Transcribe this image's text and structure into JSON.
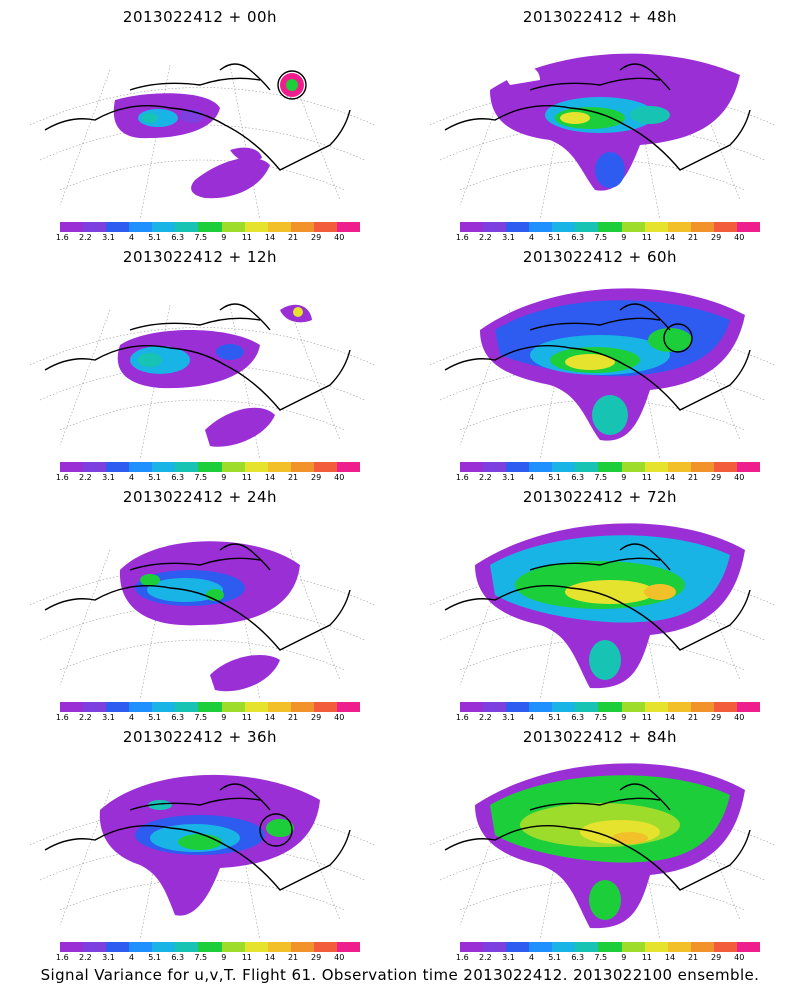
{
  "panels": [
    {
      "title": "2013022412 + 00h"
    },
    {
      "title": "2013022412 + 48h"
    },
    {
      "title": "2013022412 + 12h"
    },
    {
      "title": "2013022412 + 60h"
    },
    {
      "title": "2013022412 + 24h"
    },
    {
      "title": "2013022412 + 72h"
    },
    {
      "title": "2013022412 + 36h"
    },
    {
      "title": "2013022412 + 84h"
    }
  ],
  "colorbar": {
    "labels": [
      "1.6",
      "2.2",
      "3.1",
      "4",
      "5.1",
      "6.3",
      "7.5",
      "9",
      "11",
      "14",
      "21",
      "29",
      "40"
    ],
    "colors": [
      "#9b2fd6",
      "#7d3fe0",
      "#2f5cf0",
      "#1e90ff",
      "#19b4e6",
      "#17c3b2",
      "#1ccf3a",
      "#9edc2b",
      "#e6e32e",
      "#f2c12a",
      "#f2922a",
      "#f25c3a",
      "#ee1e8c"
    ]
  },
  "caption": "Signal Variance for u,v,T. Flight 61. Observation time 2013022412. 2013022100 ensemble."
}
